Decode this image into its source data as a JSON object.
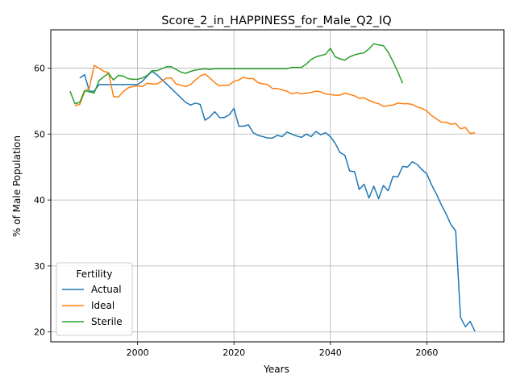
{
  "chart_data": {
    "type": "line",
    "title": "Score_2_in_HAPPINESS_for_Male_Q2_IQ",
    "xlabel": "Years",
    "ylabel": "% of Male Population",
    "xlim": [
      1982,
      2076
    ],
    "ylim": [
      18.5,
      65.8
    ],
    "x_ticks": [
      2000,
      2020,
      2040,
      2060
    ],
    "y_ticks": [
      20,
      30,
      40,
      50,
      60
    ],
    "grid": true,
    "legend": {
      "title": "Fertility",
      "placement": "lower-left"
    },
    "colors": {
      "Actual": "#1f77b4",
      "Ideal": "#ff7f0e",
      "Sterile": "#2ca02c"
    },
    "series": [
      {
        "name": "Actual",
        "x": [
          1988,
          1989,
          1990,
          1991,
          1992,
          1993,
          1994,
          1995,
          1996,
          1997,
          1998,
          1999,
          2000,
          2001,
          2002,
          2003,
          2004,
          2005,
          2006,
          2007,
          2008,
          2009,
          2010,
          2011,
          2012,
          2013,
          2014,
          2015,
          2016,
          2017,
          2018,
          2019,
          2020,
          2021,
          2022,
          2023,
          2024,
          2025,
          2026,
          2027,
          2028,
          2029,
          2030,
          2031,
          2032,
          2033,
          2034,
          2035,
          2036,
          2037,
          2038,
          2039,
          2040,
          2041,
          2042,
          2043,
          2044,
          2045,
          2046,
          2047,
          2048,
          2049,
          2050,
          2051,
          2052,
          2053,
          2054,
          2055,
          2056,
          2057,
          2058,
          2059,
          2060,
          2061,
          2062,
          2063,
          2064,
          2065,
          2066,
          2067,
          2068,
          2069,
          2070
        ],
        "values": [
          58.5,
          59.0,
          56.5,
          56.5,
          57.5,
          57.5,
          57.5,
          57.5,
          57.5,
          57.5,
          57.5,
          57.5,
          57.5,
          58.0,
          58.8,
          59.5,
          59.0,
          58.3,
          57.6,
          56.9,
          56.2,
          55.5,
          54.8,
          54.4,
          54.7,
          54.5,
          52.1,
          52.6,
          53.4,
          52.5,
          52.5,
          52.9,
          53.9,
          51.2,
          51.2,
          51.4,
          50.2,
          49.8,
          49.6,
          49.4,
          49.4,
          49.8,
          49.6,
          50.3,
          50.0,
          49.7,
          49.5,
          50.0,
          49.6,
          50.4,
          49.9,
          50.2,
          49.6,
          48.6,
          47.2,
          46.8,
          44.4,
          44.3,
          41.6,
          42.4,
          40.3,
          42.1,
          40.2,
          42.2,
          41.4,
          43.6,
          43.5,
          45.1,
          45.0,
          45.8,
          45.4,
          44.6,
          44.0,
          42.3,
          40.9,
          39.3,
          37.9,
          36.3,
          35.3,
          22.2,
          20.8,
          21.6,
          20.1
        ]
      },
      {
        "name": "Ideal",
        "x": [
          1987,
          1988,
          1989,
          1990,
          1991,
          1992,
          1993,
          1994,
          1995,
          1996,
          1997,
          1998,
          1999,
          2000,
          2001,
          2002,
          2003,
          2004,
          2005,
          2006,
          2007,
          2008,
          2009,
          2010,
          2011,
          2012,
          2013,
          2014,
          2015,
          2016,
          2017,
          2018,
          2019,
          2020,
          2021,
          2022,
          2023,
          2024,
          2025,
          2026,
          2027,
          2028,
          2029,
          2030,
          2031,
          2032,
          2033,
          2034,
          2035,
          2036,
          2037,
          2038,
          2039,
          2040,
          2041,
          2042,
          2043,
          2044,
          2045,
          2046,
          2047,
          2048,
          2049,
          2050,
          2051,
          2052,
          2053,
          2054,
          2055,
          2056,
          2057,
          2058,
          2059,
          2060,
          2061,
          2062,
          2063,
          2064,
          2065,
          2066,
          2067,
          2068,
          2069,
          2070
        ],
        "values": [
          54.3,
          54.5,
          56.4,
          57.0,
          60.4,
          60.0,
          59.5,
          59.3,
          55.7,
          55.6,
          56.4,
          57.0,
          57.2,
          57.3,
          57.2,
          57.7,
          57.6,
          57.6,
          58.0,
          58.5,
          58.5,
          57.6,
          57.4,
          57.2,
          57.5,
          58.2,
          58.8,
          59.1,
          58.5,
          57.8,
          57.3,
          57.4,
          57.4,
          58.0,
          58.2,
          58.6,
          58.4,
          58.4,
          57.8,
          57.6,
          57.5,
          56.9,
          56.9,
          56.7,
          56.5,
          56.1,
          56.3,
          56.1,
          56.2,
          56.3,
          56.5,
          56.4,
          56.1,
          56.0,
          55.9,
          55.9,
          56.2,
          56.0,
          55.8,
          55.4,
          55.5,
          55.1,
          54.8,
          54.6,
          54.2,
          54.3,
          54.4,
          54.7,
          54.6,
          54.6,
          54.5,
          54.1,
          53.9,
          53.5,
          52.8,
          52.3,
          51.8,
          51.8,
          51.5,
          51.6,
          50.8,
          51.0,
          50.1,
          50.2
        ]
      },
      {
        "name": "Sterile",
        "x": [
          1986,
          1987,
          1988,
          1989,
          1990,
          1991,
          1992,
          1993,
          1994,
          1995,
          1996,
          1997,
          1998,
          1999,
          2000,
          2001,
          2002,
          2003,
          2004,
          2005,
          2006,
          2007,
          2008,
          2009,
          2010,
          2011,
          2012,
          2013,
          2014,
          2015,
          2016,
          2017,
          2018,
          2019,
          2020,
          2021,
          2022,
          2023,
          2024,
          2025,
          2026,
          2027,
          2028,
          2029,
          2030,
          2031,
          2032,
          2033,
          2034,
          2035,
          2036,
          2037,
          2038,
          2039,
          2040,
          2041,
          2042,
          2043,
          2044,
          2045,
          2046,
          2047,
          2048,
          2049,
          2050,
          2051,
          2052,
          2053,
          2054,
          2055
        ],
        "values": [
          56.5,
          54.6,
          54.8,
          56.6,
          56.4,
          56.2,
          58.1,
          58.7,
          59.2,
          58.2,
          58.9,
          58.8,
          58.4,
          58.3,
          58.3,
          58.5,
          58.9,
          59.6,
          59.6,
          59.9,
          60.2,
          60.2,
          59.8,
          59.4,
          59.2,
          59.5,
          59.7,
          59.8,
          59.9,
          59.8,
          59.9,
          59.9,
          59.9,
          59.9,
          59.9,
          59.9,
          59.9,
          59.9,
          59.9,
          59.9,
          59.9,
          59.9,
          59.9,
          59.9,
          59.9,
          59.9,
          60.1,
          60.1,
          60.1,
          60.6,
          61.3,
          61.7,
          61.9,
          62.1,
          63.0,
          61.7,
          61.4,
          61.2,
          61.7,
          62.0,
          62.2,
          62.3,
          62.9,
          63.7,
          63.5,
          63.4,
          62.4,
          61.0,
          59.4,
          57.7
        ]
      }
    ]
  }
}
